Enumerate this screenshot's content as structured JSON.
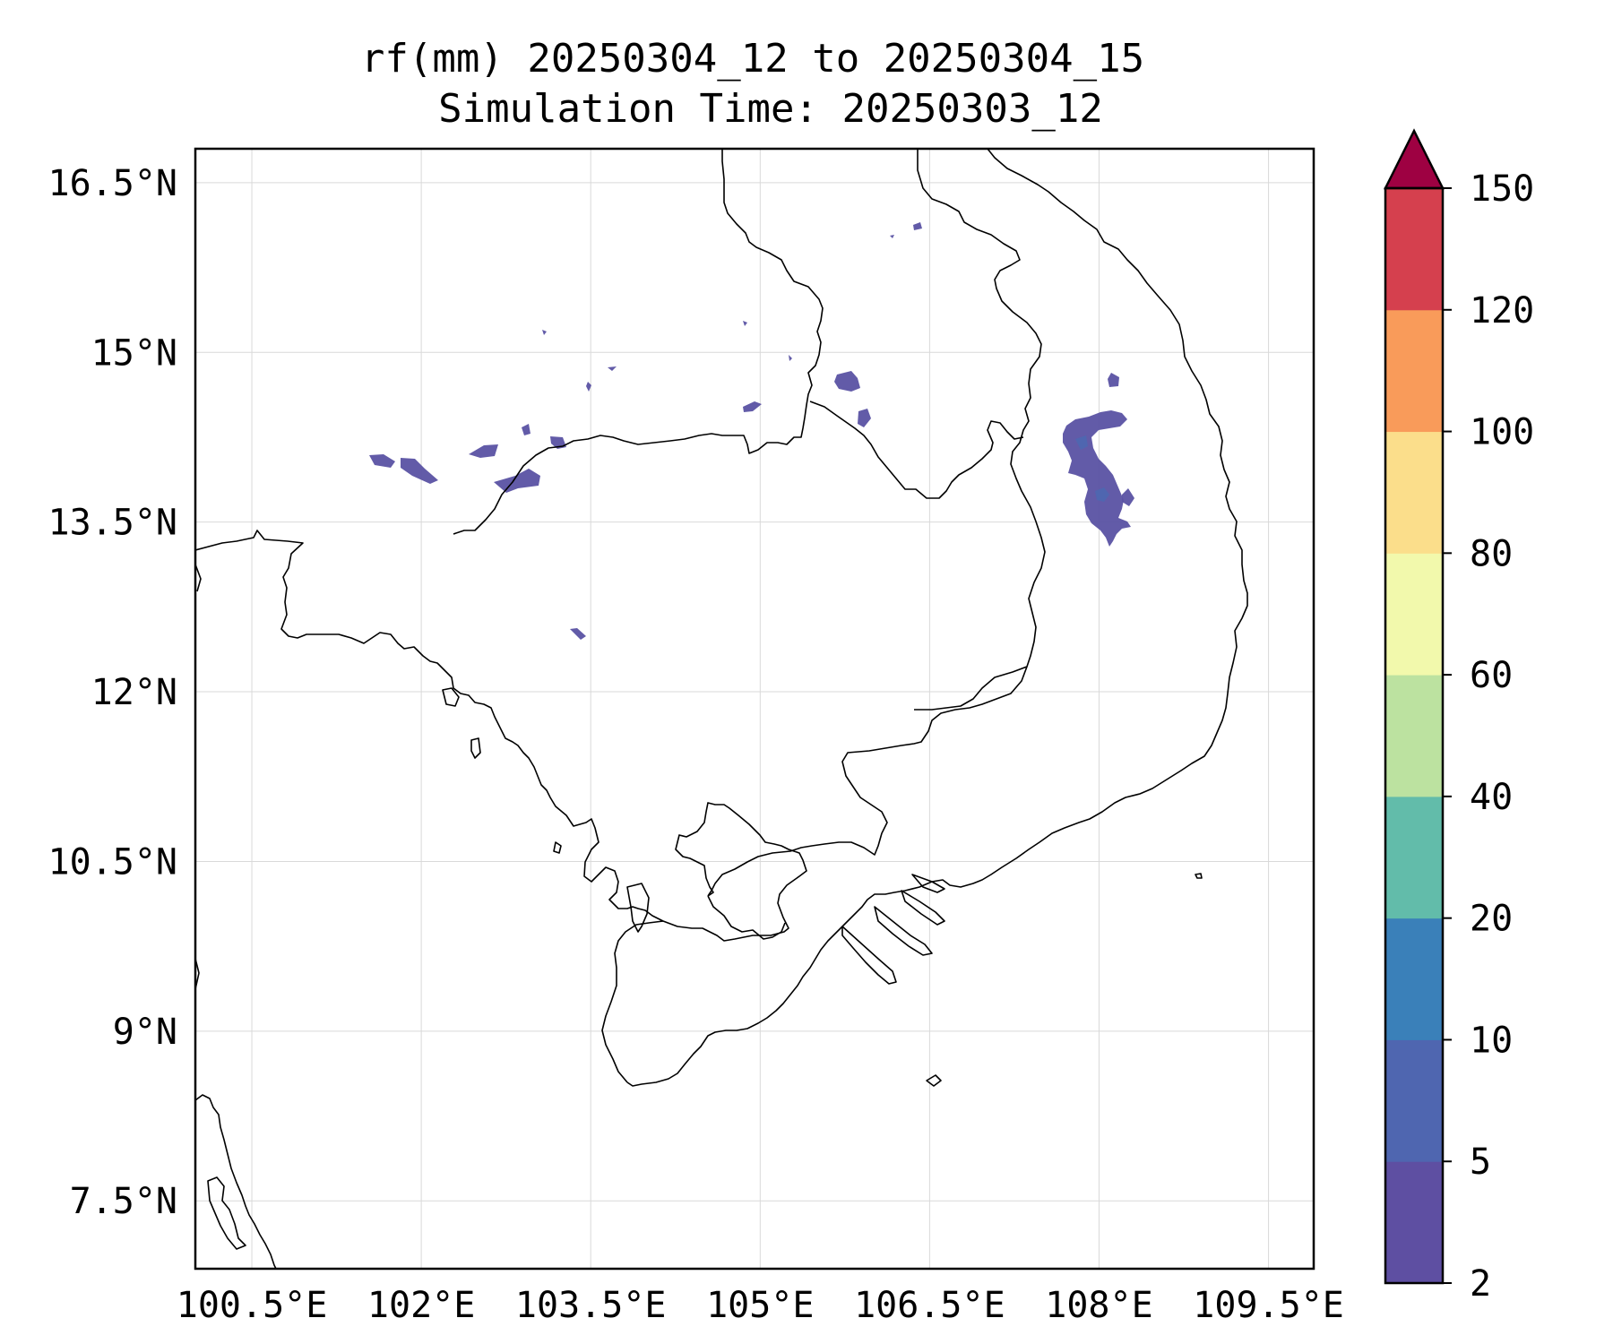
{
  "title": {
    "line1": "rf(mm) 20250304_12 to 20250304_15",
    "line2": "Simulation Time: 20250303_12"
  },
  "map": {
    "lon_range": [
      100.0,
      109.9
    ],
    "lat_range": [
      6.9,
      16.8
    ],
    "x_ticks": [
      {
        "value": 100.5,
        "label": "100.5°E"
      },
      {
        "value": 102.0,
        "label": "102°E"
      },
      {
        "value": 103.5,
        "label": "103.5°E"
      },
      {
        "value": 105.0,
        "label": "105°E"
      },
      {
        "value": 106.5,
        "label": "106.5°E"
      },
      {
        "value": 108.0,
        "label": "108°E"
      },
      {
        "value": 109.5,
        "label": "109.5°E"
      }
    ],
    "y_ticks": [
      {
        "value": 16.5,
        "label": "16.5°N"
      },
      {
        "value": 15.0,
        "label": "15°N"
      },
      {
        "value": 13.5,
        "label": "13.5°N"
      },
      {
        "value": 12.0,
        "label": "12°N"
      },
      {
        "value": 10.5,
        "label": "10.5°N"
      },
      {
        "value": 9.0,
        "label": "9°N"
      },
      {
        "value": 7.5,
        "label": "7.5°N"
      }
    ]
  },
  "colorbar": {
    "levels": [
      "2",
      "5",
      "10",
      "20",
      "40",
      "60",
      "80",
      "100",
      "120",
      "150"
    ],
    "colors": [
      "#5e4fa2",
      "#4f66b0",
      "#3a80b9",
      "#62bcaa",
      "#bce2a0",
      "#f2f9ac",
      "#fbde8b",
      "#f99b5a",
      "#d5404e",
      "#9e0142"
    ],
    "extend": "max"
  }
}
